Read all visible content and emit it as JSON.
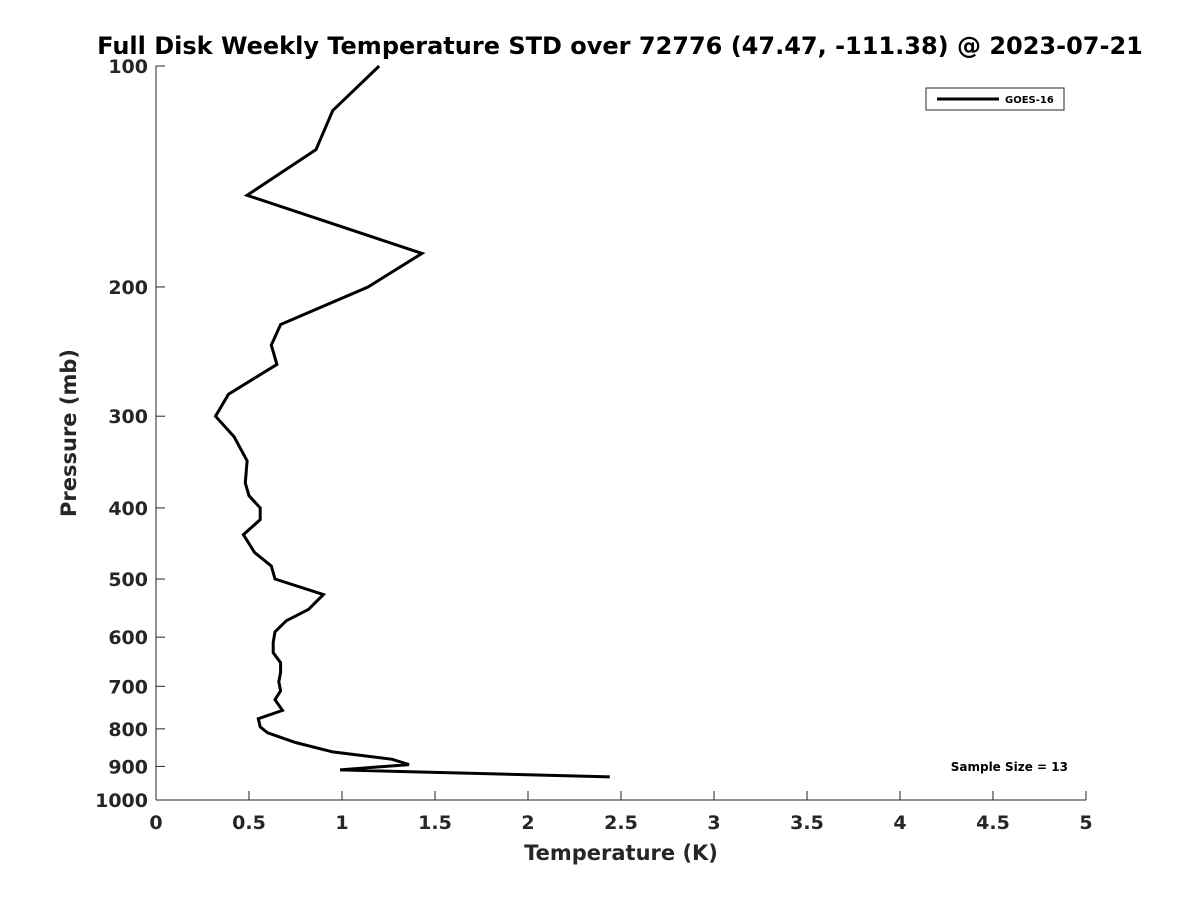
{
  "chart_data": {
    "type": "line",
    "title": "Full Disk Weekly Temperature STD over 72776 (47.47, -111.38) @ 2023-07-21",
    "xlabel": "Temperature (K)",
    "ylabel": "Pressure (mb)",
    "xlim": [
      0,
      5
    ],
    "ylim": [
      100,
      1000
    ],
    "y_scale": "log",
    "y_reversed": true,
    "grid": false,
    "legend_position": "top-right",
    "x_ticks": [
      0,
      0.5,
      1,
      1.5,
      2,
      2.5,
      3,
      3.5,
      4,
      4.5,
      5
    ],
    "x_tick_labels": [
      "0",
      "0.5",
      "1",
      "1.5",
      "2",
      "2.5",
      "3",
      "3.5",
      "4",
      "4.5",
      "5"
    ],
    "y_ticks": [
      100,
      200,
      300,
      400,
      500,
      600,
      700,
      800,
      900,
      1000
    ],
    "y_tick_labels": [
      "100",
      "200",
      "300",
      "400",
      "500",
      "600",
      "700",
      "800",
      "900",
      "1000"
    ],
    "series": [
      {
        "name": "GOES-16",
        "color": "#000000",
        "x": [
          1.2,
          0.95,
          0.86,
          0.49,
          1.43,
          1.14,
          0.67,
          0.62,
          0.65,
          0.39,
          0.32,
          0.42,
          0.49,
          0.48,
          0.5,
          0.56,
          0.56,
          0.47,
          0.53,
          0.62,
          0.64,
          0.9,
          0.82,
          0.7,
          0.64,
          0.63,
          0.63,
          0.67,
          0.67,
          0.66,
          0.67,
          0.64,
          0.68,
          0.55,
          0.56,
          0.6,
          0.75,
          0.95,
          1.27,
          1.36,
          0.99,
          2.44
        ],
        "y": [
          100,
          115,
          130,
          150,
          180,
          200,
          225,
          240,
          255,
          280,
          300,
          320,
          345,
          370,
          385,
          400,
          415,
          435,
          460,
          480,
          500,
          525,
          550,
          570,
          590,
          610,
          630,
          650,
          670,
          690,
          710,
          730,
          755,
          775,
          795,
          810,
          835,
          860,
          880,
          895,
          910,
          930
        ]
      }
    ],
    "annotation": "Sample Size = 13"
  }
}
